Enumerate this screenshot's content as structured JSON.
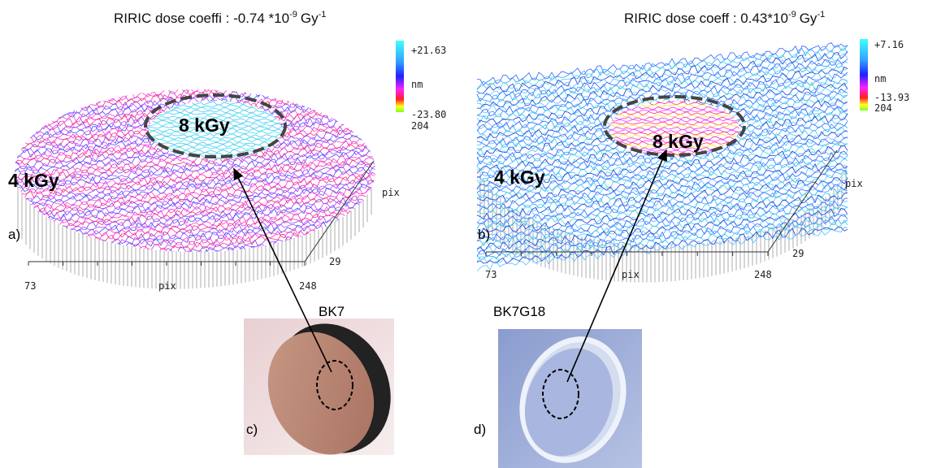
{
  "panels": [
    {
      "label": "a)",
      "title": {
        "text": "RIRIC dose coeffi : -0.74 *10",
        "exp1": "-9",
        "unit": "Gy",
        "exp2": "-1"
      },
      "colorbar": {
        "max": "+21.63",
        "unit": "nm",
        "min": "-23.80",
        "extra": "204"
      },
      "axes": {
        "x_start": "73",
        "x_label": "pix",
        "x_end": "248",
        "y_start": "29",
        "y_label": "pix"
      },
      "outer_dose": "4 kGy",
      "inner_dose": "8 kGy"
    },
    {
      "label": "b)",
      "title": {
        "text": "RIRIC dose coeff : 0.43*10",
        "exp1": "-9",
        "unit": "Gy",
        "exp2": "-1"
      },
      "colorbar": {
        "max": "+7.16",
        "unit": "nm",
        "min": "-13.93",
        "extra": "204"
      },
      "axes": {
        "x_start": "73",
        "x_label": "pix",
        "x_end": "248",
        "y_start": "29",
        "y_label": "pix"
      },
      "outer_dose": "4 kGy",
      "inner_dose": "8 kGy"
    }
  ],
  "photos": [
    {
      "label": "c)",
      "name": "BK7"
    },
    {
      "label": "d)",
      "name": "BK7G18"
    }
  ]
}
